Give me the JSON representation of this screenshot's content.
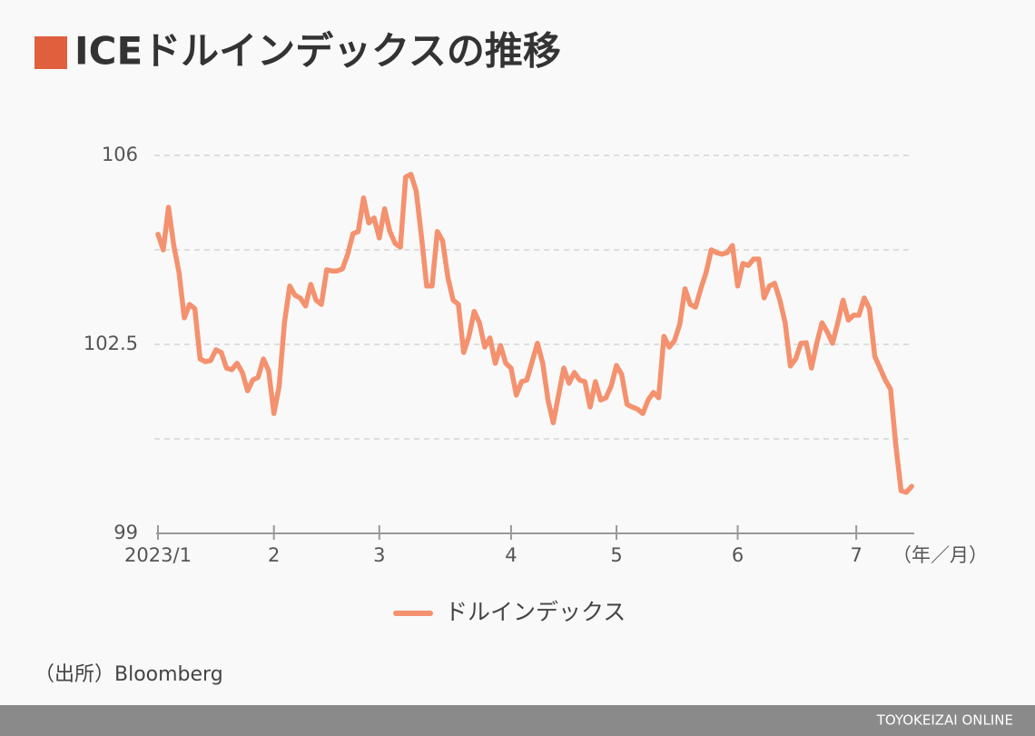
{
  "chart_data": {
    "type": "line",
    "title": "ICEドルインデックスの推移",
    "x_unit_label": "（年／月）",
    "source": "（出所）Bloomberg",
    "footer": "TOYOKEIZAI ONLINE",
    "ylim": [
      99,
      106
    ],
    "yticks": [
      99,
      102.5,
      106
    ],
    "minor_yticks": [
      100.75,
      104.25
    ],
    "grid": true,
    "xlim": [
      0,
      143.5
    ],
    "xticks": [
      {
        "value": 0,
        "label": "2023/1"
      },
      {
        "value": 22,
        "label": "2"
      },
      {
        "value": 42,
        "label": "3"
      },
      {
        "value": 67,
        "label": "4"
      },
      {
        "value": 87,
        "label": "5"
      },
      {
        "value": 110,
        "label": "6"
      },
      {
        "value": 132.5,
        "label": "7"
      }
    ],
    "legend": "bottom",
    "series": [
      {
        "name": "ドルインデックス",
        "color": "#f4916e",
        "values": [
          104.54,
          104.25,
          105.04,
          104.33,
          103.83,
          102.99,
          103.24,
          103.16,
          102.23,
          102.18,
          102.2,
          102.4,
          102.35,
          102.06,
          102.03,
          102.15,
          101.98,
          101.64,
          101.84,
          101.89,
          102.23,
          102.01,
          101.22,
          101.73,
          102.9,
          103.58,
          103.41,
          103.36,
          103.21,
          103.61,
          103.32,
          103.24,
          103.88,
          103.86,
          103.86,
          103.9,
          104.17,
          104.55,
          104.59,
          105.21,
          104.75,
          104.84,
          104.47,
          105.01,
          104.59,
          104.37,
          104.3,
          105.6,
          105.65,
          105.34,
          104.5,
          103.58,
          103.58,
          104.59,
          104.42,
          103.74,
          103.32,
          103.24,
          102.35,
          102.65,
          103.11,
          102.9,
          102.45,
          102.62,
          102.15,
          102.48,
          102.15,
          102.06,
          101.56,
          101.81,
          101.84,
          102.18,
          102.52,
          102.15,
          101.47,
          101.05,
          101.56,
          102.06,
          101.78,
          101.98,
          101.84,
          101.81,
          101.34,
          101.81,
          101.47,
          101.51,
          101.73,
          102.11,
          101.94,
          101.39,
          101.34,
          101.3,
          101.22,
          101.47,
          101.61,
          101.51,
          102.65,
          102.45,
          102.57,
          102.87,
          103.53,
          103.24,
          103.19,
          103.53,
          103.83,
          104.25,
          104.2,
          104.17,
          104.2,
          104.33,
          103.58,
          104.0,
          103.96,
          104.08,
          104.08,
          103.36,
          103.58,
          103.63,
          103.32,
          102.9,
          102.1,
          102.23,
          102.52,
          102.53,
          102.06,
          102.52,
          102.9,
          102.73,
          102.52,
          102.9,
          103.32,
          102.95,
          103.04,
          103.04,
          103.36,
          103.16,
          102.28,
          102.06,
          101.84,
          101.67,
          100.63,
          99.79,
          99.76,
          99.87
        ]
      }
    ]
  }
}
